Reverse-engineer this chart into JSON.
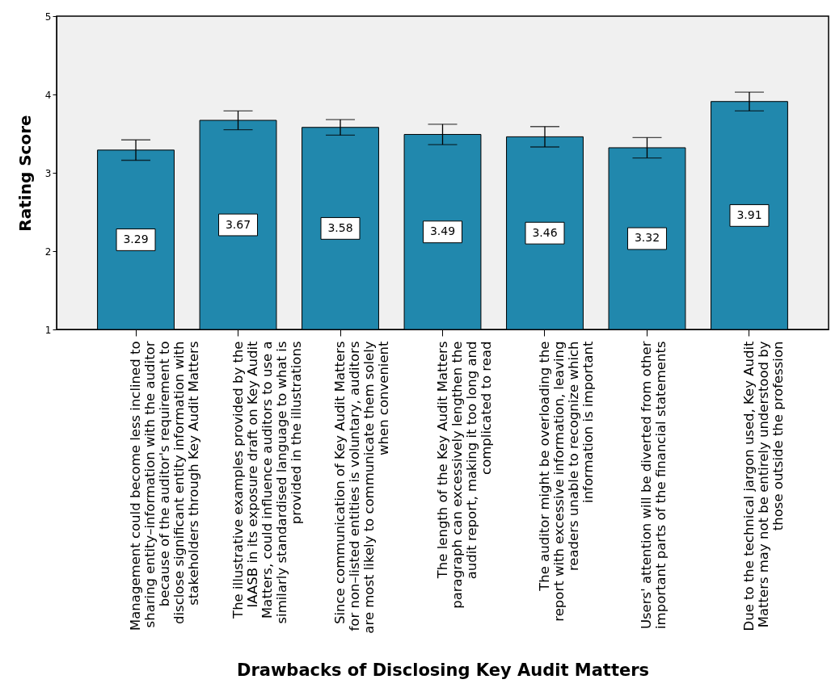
{
  "chart_data": {
    "type": "bar",
    "xlabel": "Drawbacks of Disclosing Key Audit Matters",
    "ylabel": "Rating Score",
    "categories": [
      "Management could become less inclined to\nsharing entity–information with the auditor\nbecause of the auditor's requirement to\ndisclose significant entity information with\nstakeholders through Key Audit Matters",
      "The illustrative examples provided by the\nIAASB in its exposure draft on Key Audit\nMatters, could influence auditors to use a\nsimilarly standardised language to what is\nprovided in the illustrations",
      "Since communication of Key Audit Matters\nfor non–listed entities is voluntary, auditors\nare most likely to communicate them solely\nwhen convenient",
      "The length of the Key Audit Matters\nparagraph can excessively lengthen the\naudit report, making it too long and\ncomplicated to read",
      "The auditor might be overloading the\nreport with excessive information, leaving\nreaders unable to recognize which\ninformation is important",
      "Users' attention will be diverted from other\nimportant parts of the financial statements",
      "Due to the technical jargon used, Key Audit\nMatters may not be entirely understood by\nthose outside the profession"
    ],
    "values": [
      3.29,
      3.67,
      3.58,
      3.49,
      3.46,
      3.32,
      3.91
    ],
    "errors": [
      0.13,
      0.12,
      0.1,
      0.13,
      0.13,
      0.13,
      0.12
    ],
    "color": "#2188ad",
    "data_labels": true,
    "ylim": [
      1,
      5
    ],
    "yticks": [
      1,
      2,
      3,
      4,
      5
    ],
    "grid": false
  }
}
